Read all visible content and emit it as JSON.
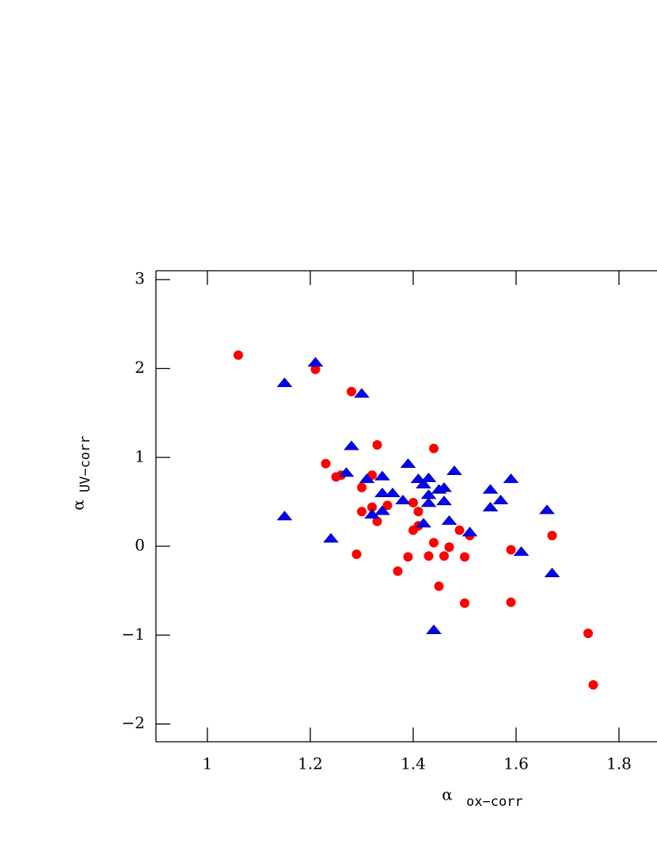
{
  "chart_data": {
    "type": "scatter",
    "xlabel": "α",
    "xlabel_sub": "ox−corr",
    "ylabel": "α",
    "ylabel_sub": "UV−corr",
    "xlim": [
      0.9,
      1.9
    ],
    "ylim": [
      -2.2,
      3.1
    ],
    "xticks": [
      1,
      1.2,
      1.4,
      1.6,
      1.8
    ],
    "yticks": [
      {
        "value": -2,
        "label": "−2"
      },
      {
        "value": -1,
        "label": "−1"
      },
      0,
      1,
      2,
      3
    ],
    "series": [
      {
        "color": "#ff0000",
        "marker": "circle",
        "x": [
          1.06,
          1.21,
          1.28,
          1.23,
          1.25,
          1.26,
          1.33,
          1.32,
          1.3,
          1.44,
          1.3,
          1.32,
          1.35,
          1.33,
          1.4,
          1.41,
          1.4,
          1.41,
          1.29,
          1.37,
          1.39,
          1.43,
          1.44,
          1.46,
          1.47,
          1.49,
          1.51,
          1.5,
          1.45,
          1.5,
          1.59,
          1.59,
          1.67,
          1.74,
          1.75
        ],
        "values": [
          2.15,
          1.99,
          1.74,
          0.93,
          0.78,
          0.8,
          1.14,
          0.8,
          0.66,
          1.1,
          0.39,
          0.44,
          0.46,
          0.28,
          0.49,
          0.39,
          0.18,
          0.23,
          -0.09,
          -0.28,
          -0.12,
          -0.11,
          0.04,
          -0.11,
          -0.01,
          0.18,
          0.12,
          -0.12,
          -0.45,
          -0.64,
          -0.04,
          -0.63,
          0.12,
          -0.98,
          -1.56
        ]
      },
      {
        "color": "#0000ff",
        "marker": "triangle",
        "x": [
          1.15,
          1.21,
          1.3,
          1.28,
          1.27,
          1.31,
          1.34,
          1.34,
          1.36,
          1.39,
          1.41,
          1.42,
          1.43,
          1.43,
          1.45,
          1.46,
          1.48,
          1.38,
          1.43,
          1.46,
          1.32,
          1.34,
          1.42,
          1.47,
          1.51,
          1.15,
          1.24,
          1.55,
          1.55,
          1.57,
          1.59,
          1.61,
          1.66,
          1.67,
          1.44
        ],
        "values": [
          1.84,
          2.07,
          1.72,
          1.13,
          0.83,
          0.76,
          0.79,
          0.6,
          0.6,
          0.93,
          0.76,
          0.7,
          0.77,
          0.58,
          0.64,
          0.66,
          0.85,
          0.52,
          0.49,
          0.51,
          0.36,
          0.4,
          0.26,
          0.29,
          0.16,
          0.34,
          0.09,
          0.64,
          0.44,
          0.52,
          0.76,
          -0.06,
          0.41,
          -0.3,
          -0.94
        ]
      }
    ]
  }
}
